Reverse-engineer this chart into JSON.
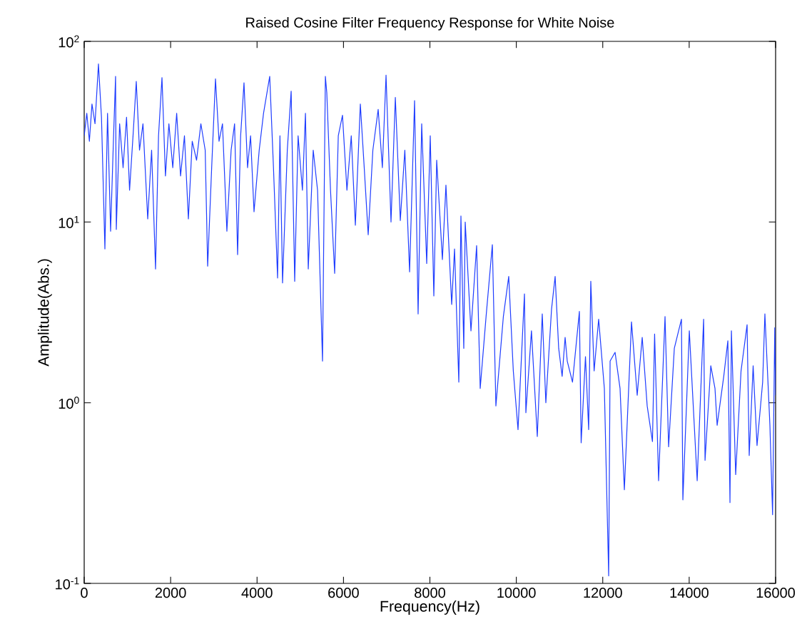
{
  "chart_data": {
    "type": "line",
    "title": "Raised Cosine Filter Frequency Response for White Noise",
    "xlabel": "Frequency(Hz)",
    "ylabel": "Amplitude(Abs.)",
    "log": "y",
    "xlim": [
      0,
      16000
    ],
    "xticks": [
      0,
      2000,
      4000,
      6000,
      8000,
      10000,
      12000,
      14000,
      16000
    ],
    "ylim": [
      0.1,
      100
    ],
    "yticks": [
      {
        "value": 0.1,
        "label": "10$^{-1}$"
      },
      {
        "value": 1,
        "label": "10$^{0}$"
      },
      {
        "value": 10,
        "label": "10$^{1}$"
      },
      {
        "value": 100,
        "label": "10$^{2}$"
      }
    ],
    "series": [
      {
        "color": "#1f3dff",
        "x": [
          0,
          60,
          120,
          180,
          250,
          330,
          400,
          479,
          540,
          611,
          680,
          726,
          743,
          820,
          900,
          980,
          1050,
          1130,
          1205,
          1280,
          1360,
          1470,
          1560,
          1651,
          1720,
          1800,
          1880,
          1960,
          2050,
          2140,
          2230,
          2320,
          2411,
          2500,
          2600,
          2700,
          2800,
          2857,
          2950,
          3038,
          3120,
          3200,
          3302,
          3400,
          3480,
          3550,
          3620,
          3698,
          3780,
          3850,
          3930,
          4050,
          4150,
          4293,
          4380,
          4475,
          4530,
          4590,
          4700,
          4789,
          4871,
          4950,
          5050,
          5120,
          5185,
          5300,
          5400,
          5515,
          5581,
          5614,
          5700,
          5796,
          5880,
          5977,
          6080,
          6180,
          6275,
          6390,
          6480,
          6572,
          6680,
          6803,
          6900,
          6985,
          7100,
          7200,
          7315,
          7420,
          7530,
          7645,
          7727,
          7810,
          7926,
          8008,
          8091,
          8157,
          8289,
          8371,
          8504,
          8570,
          8669,
          8718,
          8784,
          8817,
          8950,
          9081,
          9164,
          9300,
          9445,
          9527,
          9700,
          9824,
          9930,
          10039,
          10188,
          10221,
          10350,
          10485,
          10600,
          10683,
          10815,
          10898,
          10980,
          11060,
          11129,
          11178,
          11300,
          11459,
          11500,
          11600,
          11674,
          11723,
          11800,
          11905,
          12037,
          12137,
          12170,
          12285,
          12400,
          12500,
          12665,
          12797,
          12913,
          13028,
          13150,
          13200,
          13292,
          13441,
          13524,
          13656,
          13821,
          13854,
          14003,
          14185,
          14334,
          14367,
          14500,
          14597,
          14647,
          14800,
          14895,
          14944,
          14977,
          15076,
          15200,
          15340,
          15389,
          15480,
          15570,
          15700,
          15752,
          15868,
          15930,
          15980,
          16000
        ],
        "values": [
          30,
          40,
          28,
          45,
          35,
          75,
          38,
          7.1,
          40,
          8.9,
          30,
          64,
          9.1,
          35,
          20,
          38,
          15,
          30,
          60,
          25,
          35,
          10.4,
          25,
          5.5,
          30,
          63,
          18,
          35,
          20,
          40,
          18,
          30,
          10.4,
          28,
          22,
          35,
          25,
          5.7,
          20,
          62,
          28,
          35,
          8.9,
          25,
          35,
          6.6,
          30,
          59,
          20,
          30,
          11.4,
          25,
          40,
          64,
          20,
          4.9,
          30,
          4.6,
          25,
          53,
          4.7,
          30,
          15,
          40,
          5.5,
          25,
          15,
          1.7,
          64,
          52,
          15,
          5.2,
          30,
          39,
          15,
          30,
          9.6,
          45,
          20,
          8.5,
          25,
          42,
          20,
          65,
          10,
          49,
          10.2,
          25,
          5.3,
          47,
          3.1,
          35,
          5.9,
          30,
          3.9,
          22,
          6.2,
          16,
          3.5,
          7.1,
          1.3,
          10.8,
          2.0,
          10,
          2.5,
          7.4,
          1.2,
          3,
          7.5,
          0.96,
          3,
          5.0,
          1.5,
          0.71,
          4.0,
          0.88,
          2.5,
          0.65,
          3.1,
          1.0,
          3.3,
          5.0,
          2.0,
          1.4,
          2.3,
          1.7,
          1.3,
          3.2,
          0.6,
          1.8,
          0.71,
          4.7,
          1.5,
          2.9,
          1.2,
          0.11,
          1.7,
          1.9,
          1.2,
          0.33,
          2.8,
          1.1,
          2.3,
          0.96,
          0.61,
          2.4,
          0.37,
          3.0,
          0.57,
          2.0,
          2.9,
          0.29,
          2.5,
          0.37,
          2.9,
          0.48,
          1.6,
          1.2,
          0.75,
          1.4,
          2.2,
          0.28,
          2.5,
          0.4,
          1.5,
          2.7,
          0.51,
          1.6,
          0.58,
          1.3,
          3.1,
          0.75,
          0.24,
          2.6,
          1.1
        ]
      }
    ]
  }
}
